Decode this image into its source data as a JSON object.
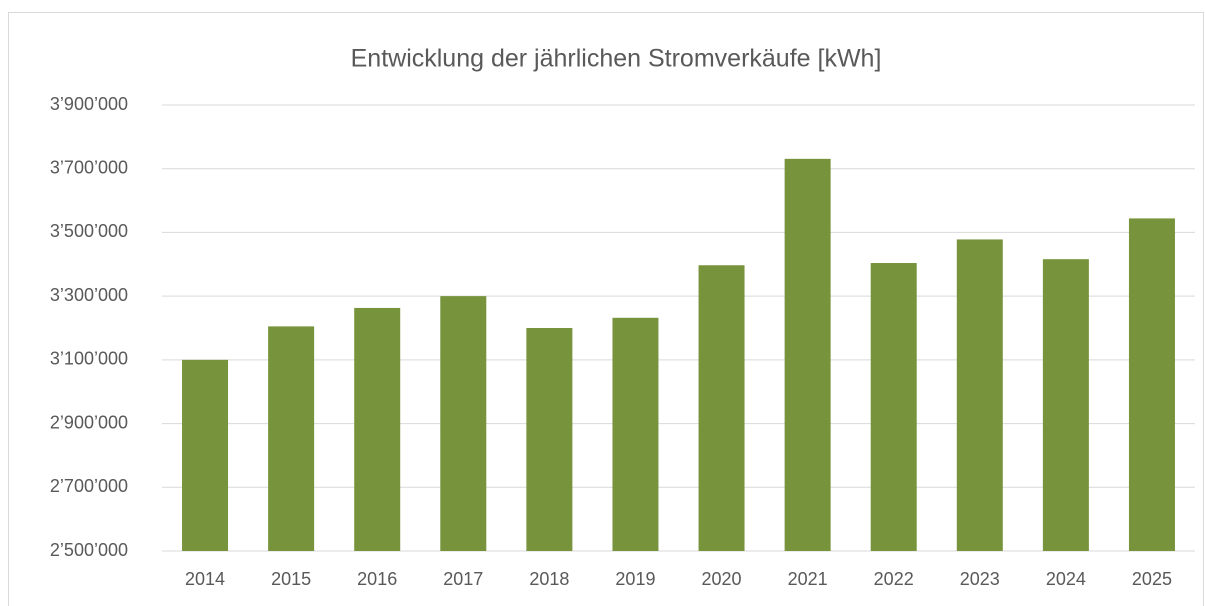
{
  "chart_data": {
    "type": "bar",
    "title": "Entwicklung der jährlichen Stromverkäufe [kWh]",
    "categories": [
      "2014",
      "2015",
      "2016",
      "2017",
      "2018",
      "2019",
      "2020",
      "2021",
      "2022",
      "2023",
      "2024",
      "2025"
    ],
    "values": [
      3100000,
      3205000,
      3263000,
      3300000,
      3200000,
      3232000,
      3397000,
      3731000,
      3404000,
      3478000,
      3416000,
      3544000
    ],
    "color": "#77933c",
    "ylim": [
      2500000,
      3900000
    ],
    "yticks": [
      {
        "value": 2500000,
        "label": "2’500’000"
      },
      {
        "value": 2700000,
        "label": "2’700’000"
      },
      {
        "value": 2900000,
        "label": "2’900’000"
      },
      {
        "value": 3100000,
        "label": "3’100’000"
      },
      {
        "value": 3300000,
        "label": "3’300’000"
      },
      {
        "value": 3500000,
        "label": "3’500’000"
      },
      {
        "value": 3700000,
        "label": "3’700’000"
      },
      {
        "value": 3900000,
        "label": "3’900’000"
      }
    ],
    "grid": true
  }
}
